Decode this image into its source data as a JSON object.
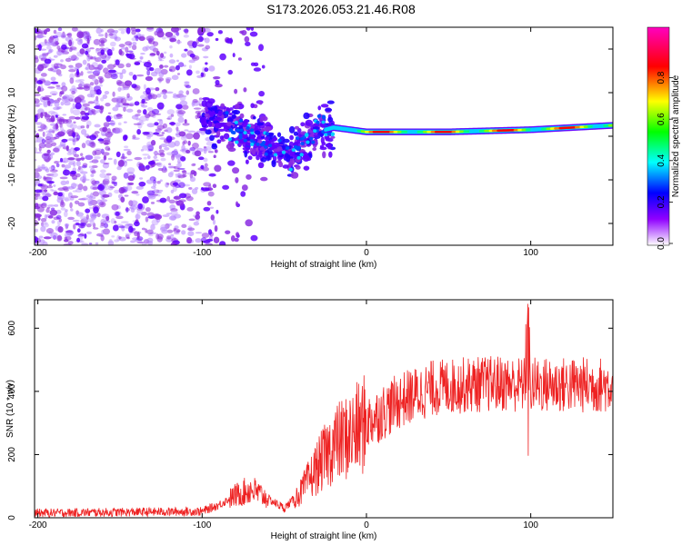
{
  "title": "S173.2026.053.21.46.R08",
  "chart_data": [
    {
      "type": "heatmap",
      "xlabel": "Height of straight line (km)",
      "ylabel": "Frequency (Hz)",
      "xlim": [
        -202,
        150
      ],
      "ylim": [
        -25,
        25
      ],
      "xticks": [
        -200,
        -100,
        0,
        100
      ],
      "yticks": [
        -20,
        -10,
        0,
        10,
        20
      ],
      "colorbar": {
        "label": "Normalized spectral amplitude",
        "range": [
          0,
          1
        ],
        "ticks": [
          "0.0",
          "0.2",
          "0.4",
          "0.6",
          "0.8"
        ],
        "colors": [
          "#ffffff",
          "#8000ff",
          "#0000ff",
          "#00ffff",
          "#00ff00",
          "#ffff00",
          "#ff0000",
          "#ff00c0"
        ]
      },
      "ridge": {
        "description_points": [
          {
            "x": -200,
            "y": 8
          },
          {
            "x": -150,
            "y": 6
          },
          {
            "x": -100,
            "y": 5
          },
          {
            "x": -80,
            "y": 2
          },
          {
            "x": -60,
            "y": -2
          },
          {
            "x": -45,
            "y": -4
          },
          {
            "x": -30,
            "y": 1
          },
          {
            "x": -20,
            "y": 2
          },
          {
            "x": 0,
            "y": 1
          },
          {
            "x": 50,
            "y": 1
          },
          {
            "x": 100,
            "y": 1.5
          },
          {
            "x": 150,
            "y": 2.5
          }
        ]
      }
    },
    {
      "type": "line",
      "xlabel": "Height of straight line (km)",
      "ylabel": "SNR (10 * v/v)",
      "xlim": [
        -202,
        150
      ],
      "ylim": [
        0,
        690
      ],
      "xticks": [
        -200,
        -100,
        0,
        100
      ],
      "yticks": [
        0,
        200,
        400,
        600
      ],
      "series_color": "#ee2222",
      "envelope": [
        {
          "x": -202,
          "y": 15
        },
        {
          "x": -100,
          "y": 20
        },
        {
          "x": -90,
          "y": 40
        },
        {
          "x": -80,
          "y": 70
        },
        {
          "x": -70,
          "y": 90
        },
        {
          "x": -60,
          "y": 60
        },
        {
          "x": -50,
          "y": 30
        },
        {
          "x": -40,
          "y": 80
        },
        {
          "x": -30,
          "y": 160
        },
        {
          "x": -20,
          "y": 230
        },
        {
          "x": -10,
          "y": 260
        },
        {
          "x": 0,
          "y": 300
        },
        {
          "x": 20,
          "y": 370
        },
        {
          "x": 40,
          "y": 410
        },
        {
          "x": 60,
          "y": 420
        },
        {
          "x": 80,
          "y": 425
        },
        {
          "x": 100,
          "y": 420
        },
        {
          "x": 120,
          "y": 420
        },
        {
          "x": 150,
          "y": 420
        }
      ]
    }
  ]
}
